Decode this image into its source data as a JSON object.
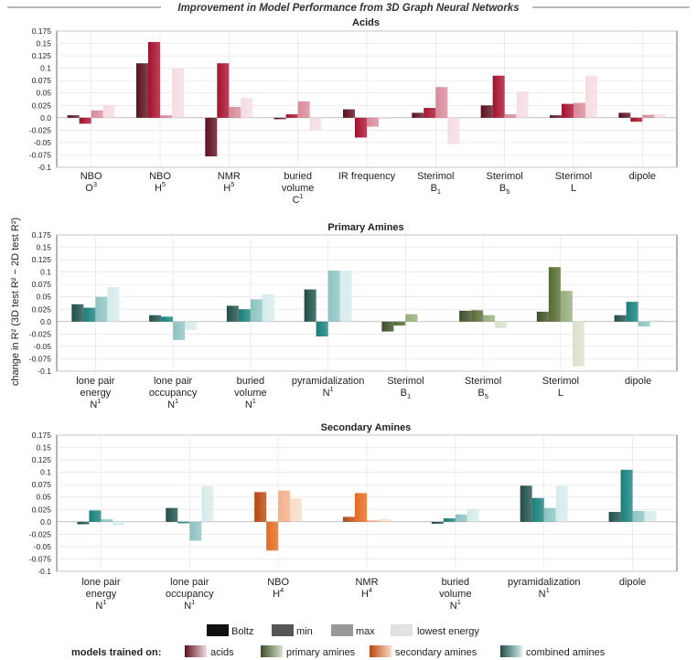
{
  "figure": {
    "title": "Improvement in Model Performance from 3D Graph Neural Networks",
    "ylabel": "change in R² (3D test R² − 2D test R²)"
  },
  "chart_data": [
    {
      "type": "bar",
      "title": "Acids",
      "ylim": [
        -0.1,
        0.175
      ],
      "yticks": [
        -0.1,
        -0.075,
        -0.05,
        -0.025,
        0.0,
        0.025,
        0.05,
        0.075,
        0.1,
        0.125,
        0.15,
        0.175
      ],
      "grid": true,
      "categories": [
        {
          "line1": "NBO",
          "line2": "O",
          "sup2": "3",
          "sub2": "",
          "line3": "",
          "sup3": ""
        },
        {
          "line1": "NBO",
          "line2": "H",
          "sup2": "5",
          "sub2": "",
          "line3": "",
          "sup3": ""
        },
        {
          "line1": "NMR",
          "line2": "H",
          "sup2": "5",
          "sub2": "",
          "line3": "",
          "sup3": ""
        },
        {
          "line1": "buried",
          "line2": "volume",
          "sup2": "",
          "sub2": "",
          "line3": "C",
          "sup3": "1"
        },
        {
          "line1": "IR frequency",
          "line2": "",
          "sup2": "",
          "sub2": "",
          "line3": "",
          "sup3": ""
        },
        {
          "line1": "Sterimol",
          "line2": "B",
          "sup2": "",
          "sub2": "1",
          "line3": "",
          "sup3": ""
        },
        {
          "line1": "Sterimol",
          "line2": "B",
          "sup2": "",
          "sub2": "5",
          "line3": "",
          "sup3": ""
        },
        {
          "line1": "Sterimol",
          "line2": "L",
          "sup2": "",
          "sub2": "",
          "line3": "",
          "sup3": ""
        },
        {
          "line1": "dipole",
          "line2": "",
          "sup2": "",
          "sub2": "",
          "line3": "",
          "sup3": ""
        }
      ],
      "palette": [
        "#5c0f1e",
        "#a60f2d",
        "#d88a99",
        "#f5dde2"
      ],
      "groups": [
        [
          {
            "name": "Boltz",
            "values": [
              0.005,
              0.11,
              -0.078,
              -0.003,
              0.017,
              0.01,
              0.025,
              0.005,
              0.01
            ]
          },
          {
            "name": "min",
            "values": [
              -0.012,
              0.153,
              0.11,
              0.007,
              -0.04,
              0.02,
              0.085,
              0.028,
              -0.008
            ]
          }
        ],
        [
          {
            "name": "max",
            "values": [
              0.015,
              0.005,
              0.022,
              0.033,
              -0.018,
              0.062,
              0.007,
              0.03,
              0.006
            ]
          },
          {
            "name": "lowest energy",
            "values": [
              0.025,
              0.1,
              0.04,
              -0.025,
              -0.003,
              -0.053,
              0.053,
              0.085,
              0.007
            ]
          }
        ]
      ]
    },
    {
      "type": "bar",
      "title": "Primary Amines",
      "ylim": [
        -0.1,
        0.175
      ],
      "yticks": [
        -0.1,
        -0.075,
        -0.05,
        -0.025,
        0.0,
        0.025,
        0.05,
        0.075,
        0.1,
        0.125,
        0.15,
        0.175
      ],
      "grid": true,
      "categories": [
        {
          "line1": "lone pair",
          "line2": "energy",
          "sup2": "",
          "sub2": "",
          "line3": "N",
          "sup3": "1"
        },
        {
          "line1": "lone pair",
          "line2": "occupancy",
          "sup2": "",
          "sub2": "",
          "line3": "N",
          "sup3": "1"
        },
        {
          "line1": "buried",
          "line2": "volume",
          "sup2": "",
          "sub2": "",
          "line3": "N",
          "sup3": "1"
        },
        {
          "line1": "pyramidalization",
          "line2": "N",
          "sup2": "1",
          "sub2": "",
          "line3": "",
          "sup3": ""
        },
        {
          "line1": "Sterimol",
          "line2": "B",
          "sup2": "",
          "sub2": "1",
          "line3": "",
          "sup3": ""
        },
        {
          "line1": "Sterimol",
          "line2": "B",
          "sup2": "",
          "sub2": "5",
          "line3": "",
          "sup3": ""
        },
        {
          "line1": "Sterimol",
          "line2": "L",
          "sup2": "",
          "sub2": "",
          "line3": "",
          "sup3": ""
        },
        {
          "line1": "dipole",
          "line2": "",
          "sup2": "",
          "sub2": "",
          "line3": "",
          "sup3": ""
        }
      ],
      "palette": [
        "#1f4f4a",
        "#167f7b",
        "#8cc3c2",
        "#d7ebeb"
      ],
      "palette_override": {
        "4": [
          "#3d4f26",
          "#556b30",
          "#97ad7c",
          "#d9e2cd"
        ],
        "5": [
          "#3d4f26",
          "#556b30",
          "#97ad7c",
          "#d9e2cd"
        ],
        "6": [
          "#3d4f26",
          "#556b30",
          "#97ad7c",
          "#d9e2cd"
        ]
      },
      "groups": [
        [
          {
            "name": "Boltz",
            "values": [
              0.035,
              0.013,
              0.032,
              0.065,
              -0.02,
              0.022,
              0.02,
              0.013
            ]
          },
          {
            "name": "min",
            "values": [
              0.028,
              0.01,
              0.025,
              -0.03,
              -0.008,
              0.023,
              0.11,
              0.04
            ]
          }
        ],
        [
          {
            "name": "max",
            "values": [
              0.05,
              -0.037,
              0.045,
              0.103,
              0.015,
              0.013,
              0.062,
              -0.01
            ]
          },
          {
            "name": "lowest energy",
            "values": [
              0.07,
              -0.017,
              0.055,
              0.103,
              0.0,
              -0.013,
              -0.09,
              0.003
            ]
          }
        ]
      ]
    },
    {
      "type": "bar",
      "title": "Secondary Amines",
      "ylim": [
        -0.1,
        0.175
      ],
      "yticks": [
        -0.1,
        -0.075,
        -0.05,
        -0.025,
        0.0,
        0.025,
        0.05,
        0.075,
        0.1,
        0.125,
        0.15,
        0.175
      ],
      "grid": true,
      "categories": [
        {
          "line1": "lone pair",
          "line2": "energy",
          "sup2": "",
          "sub2": "",
          "line3": "N",
          "sup3": "1"
        },
        {
          "line1": "lone pair",
          "line2": "occupancy",
          "sup2": "",
          "sub2": "",
          "line3": "N",
          "sup3": "1"
        },
        {
          "line1": "NBO",
          "line2": "H",
          "sup2": "4",
          "sub2": "",
          "line3": "",
          "sup3": ""
        },
        {
          "line1": "NMR",
          "line2": "H",
          "sup2": "4",
          "sub2": "",
          "line3": "",
          "sup3": ""
        },
        {
          "line1": "buried",
          "line2": "volume",
          "sup2": "",
          "sub2": "",
          "line3": "N",
          "sup3": "1"
        },
        {
          "line1": "pyramidalization",
          "line2": "N",
          "sup2": "1",
          "sub2": "",
          "line3": "",
          "sup3": ""
        },
        {
          "line1": "dipole",
          "line2": "",
          "sup2": "",
          "sub2": "",
          "line3": "",
          "sup3": ""
        }
      ],
      "palette": [
        "#1f4f4a",
        "#167f7b",
        "#8cc3c2",
        "#d7ebeb"
      ],
      "palette_override": {
        "2": [
          "#b8470f",
          "#e56a1f",
          "#f0b08a",
          "#f8dcc8"
        ],
        "3": [
          "#b8470f",
          "#e56a1f",
          "#f0b08a",
          "#f8dcc8"
        ]
      },
      "groups": [
        [
          {
            "name": "Boltz",
            "values": [
              -0.005,
              0.028,
              0.06,
              0.01,
              -0.004,
              0.073,
              0.02
            ]
          },
          {
            "name": "min",
            "values": [
              0.023,
              -0.003,
              -0.058,
              0.058,
              0.007,
              0.048,
              0.105
            ]
          }
        ],
        [
          {
            "name": "max",
            "values": [
              0.005,
              -0.038,
              0.063,
              0.003,
              0.015,
              0.028,
              0.022
            ]
          },
          {
            "name": "lowest energy",
            "values": [
              -0.007,
              0.072,
              0.047,
              0.005,
              0.025,
              0.073,
              0.022
            ]
          }
        ]
      ]
    }
  ],
  "legend": {
    "statistics": [
      "Boltz",
      "min",
      "max",
      "lowest energy"
    ],
    "statistic_colors": [
      "#111111",
      "#555555",
      "#999999",
      "#e2e2e2"
    ],
    "models_label": "models trained on:",
    "models": [
      {
        "name": "acids",
        "from": "#5c0f1e",
        "to": "#f5dde2"
      },
      {
        "name": "primary amines",
        "from": "#3d4f26",
        "to": "#d9e2cd"
      },
      {
        "name": "secondary amines",
        "from": "#b8470f",
        "to": "#f8dcc8"
      },
      {
        "name": "combined amines",
        "from": "#1f4f4a",
        "to": "#d7ebeb"
      }
    ]
  }
}
